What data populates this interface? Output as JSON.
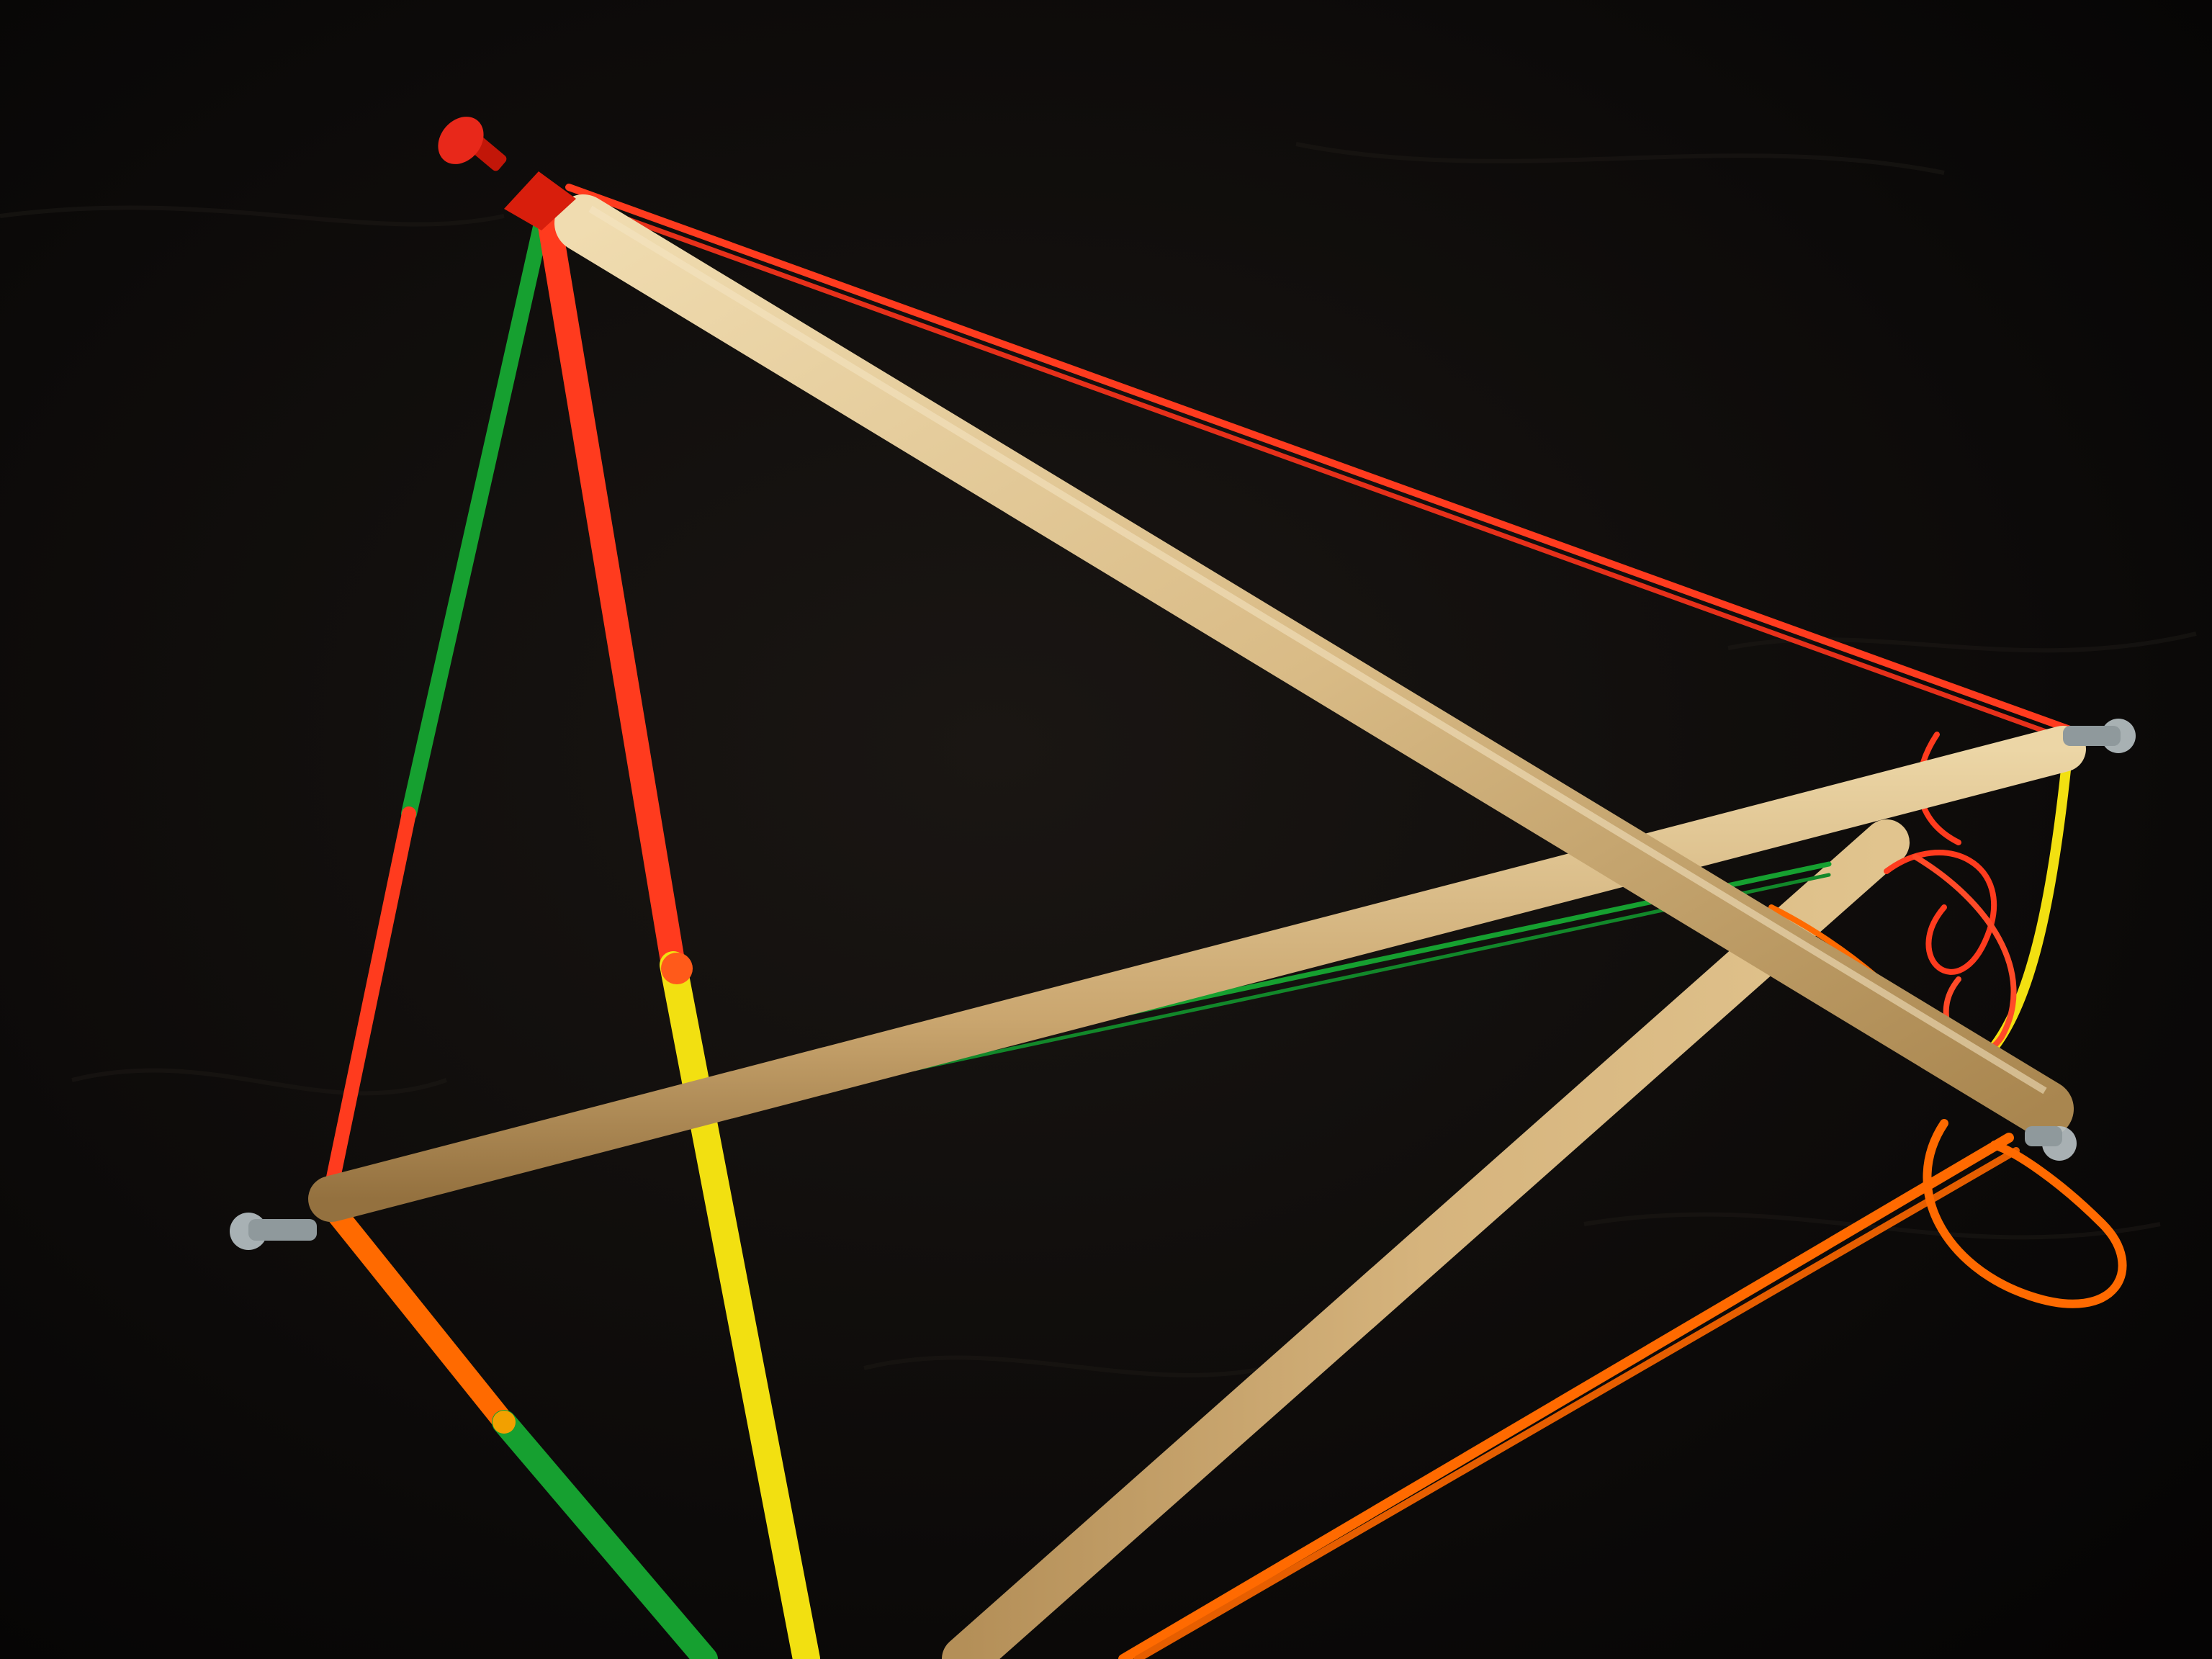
{
  "scene": {
    "subject": "tensegrity",
    "colors": {
      "background": "#0a0807",
      "wood_light": "#e6cfa2",
      "wood_mid": "#c9a874",
      "wood_dark": "#8a6a3c",
      "band_red": "#ff3b1e",
      "band_green": "#16a030",
      "band_yellow": "#f2e011",
      "band_orange": "#ff6a00",
      "pin_red": "#d81e0c",
      "pin_clear": "#b9c3c6"
    }
  }
}
